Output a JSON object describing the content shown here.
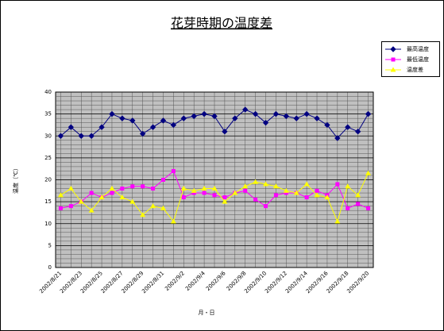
{
  "chart_data": {
    "type": "line",
    "title": "花芽時期の温度差",
    "x_label": "月・日",
    "y_label": "温度（℃）",
    "categories": [
      "2002/8/21",
      null,
      "2002/8/23",
      null,
      "2002/8/25",
      null,
      "2002/8/27",
      null,
      "2002/8/29",
      null,
      "2002/8/31",
      null,
      "2002/9/2",
      null,
      "2002/9/4",
      null,
      "2002/9/6",
      null,
      "2002/9/8",
      null,
      "2002/9/10",
      null,
      "2002/9/12",
      null,
      "2002/9/14",
      null,
      "2002/9/16",
      null,
      "2002/9/18",
      null,
      "2002/9/20"
    ],
    "series": [
      {
        "name": "最高温度",
        "color": "#000080",
        "marker": "diamond",
        "values": [
          30,
          32,
          30,
          30,
          32,
          35,
          34,
          33.5,
          30.5,
          32,
          33.5,
          32.5,
          34,
          34.5,
          35,
          34.5,
          31,
          34,
          36,
          35,
          33,
          35,
          34.5,
          34,
          35,
          34,
          32.5,
          29.5,
          32,
          31,
          35
        ]
      },
      {
        "name": "最低温度",
        "color": "#ff00ff",
        "marker": "square",
        "values": [
          13.5,
          14,
          15,
          17,
          16,
          17,
          18,
          18.5,
          18.5,
          18,
          20,
          22,
          16,
          17,
          17,
          16.5,
          16,
          17,
          17.5,
          15.5,
          14,
          16.5,
          17,
          17,
          16,
          17.5,
          16.5,
          19,
          13.5,
          14.5,
          13.5
        ]
      },
      {
        "name": "温度差",
        "color": "#ffff00",
        "marker": "triangle",
        "values": [
          16.5,
          18,
          15,
          13,
          16,
          18,
          16,
          15,
          12,
          14,
          13.5,
          10.5,
          18,
          17.5,
          18,
          18,
          15,
          17,
          18.5,
          19.5,
          19,
          18.5,
          17.5,
          17,
          19,
          16.5,
          16,
          10.5,
          18.5,
          16.5,
          21.5
        ]
      }
    ],
    "ylim": [
      0,
      40
    ],
    "yticks": [
      0,
      5,
      10,
      15,
      20,
      25,
      30,
      35,
      40
    ],
    "grid": true,
    "legend": "right"
  }
}
